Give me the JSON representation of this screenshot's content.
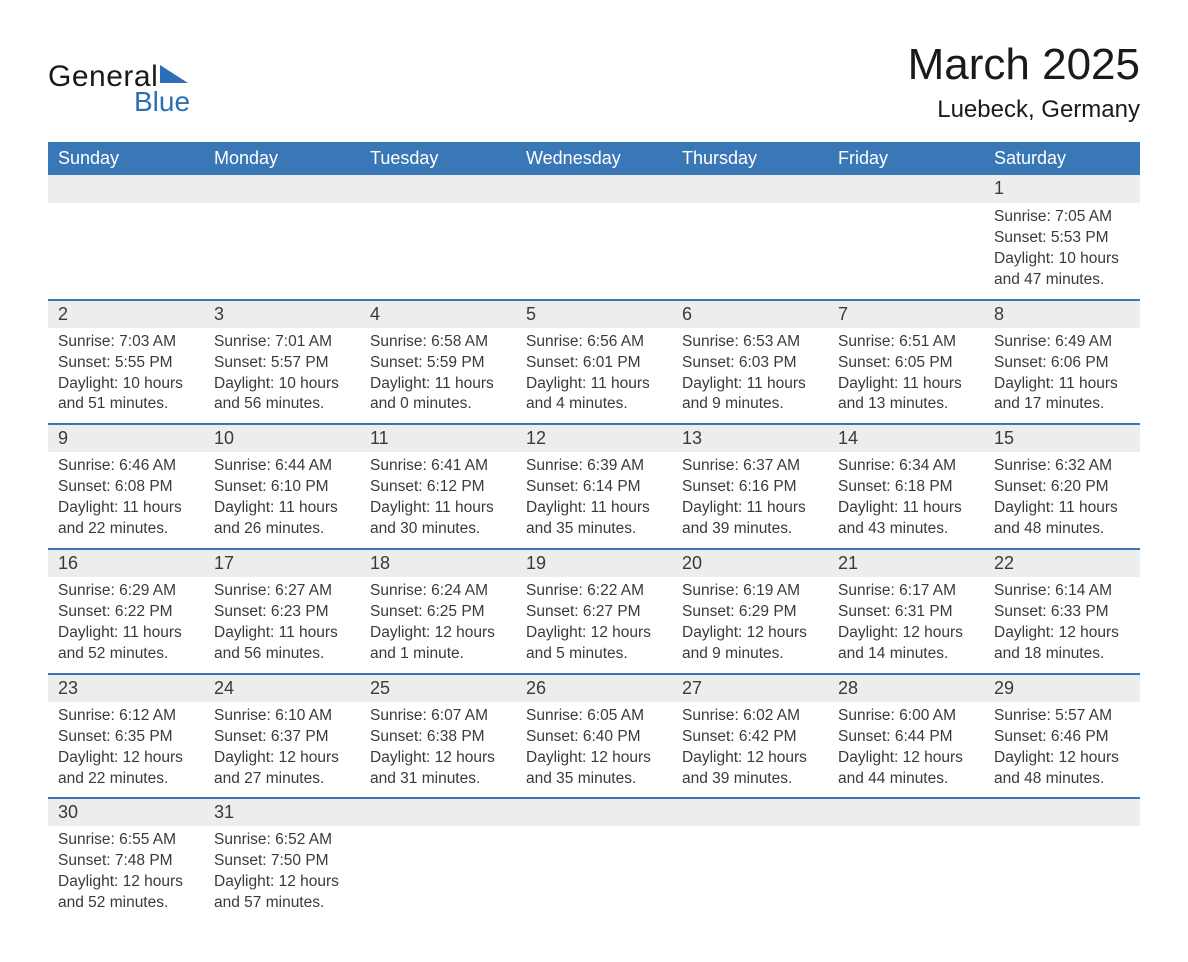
{
  "brand": {
    "general": "General",
    "blue": "Blue"
  },
  "title": "March 2025",
  "location": "Luebeck, Germany",
  "colors": {
    "header_bg": "#3a77b7",
    "header_text": "#ffffff",
    "daynum_bg": "#ededed",
    "text": "#3a3a3a",
    "logo_blue": "#2d6fb5",
    "row_divider": "#3a77b7"
  },
  "fonts": {
    "title_size_pt": 33,
    "location_size_pt": 18,
    "header_size_pt": 14,
    "cell_size_pt": 12
  },
  "weekdays": [
    "Sunday",
    "Monday",
    "Tuesday",
    "Wednesday",
    "Thursday",
    "Friday",
    "Saturday"
  ],
  "weeks": [
    [
      null,
      null,
      null,
      null,
      null,
      null,
      {
        "n": "1",
        "sunrise": "Sunrise: 7:05 AM",
        "sunset": "Sunset: 5:53 PM",
        "daylight": "Daylight: 10 hours and 47 minutes."
      }
    ],
    [
      {
        "n": "2",
        "sunrise": "Sunrise: 7:03 AM",
        "sunset": "Sunset: 5:55 PM",
        "daylight": "Daylight: 10 hours and 51 minutes."
      },
      {
        "n": "3",
        "sunrise": "Sunrise: 7:01 AM",
        "sunset": "Sunset: 5:57 PM",
        "daylight": "Daylight: 10 hours and 56 minutes."
      },
      {
        "n": "4",
        "sunrise": "Sunrise: 6:58 AM",
        "sunset": "Sunset: 5:59 PM",
        "daylight": "Daylight: 11 hours and 0 minutes."
      },
      {
        "n": "5",
        "sunrise": "Sunrise: 6:56 AM",
        "sunset": "Sunset: 6:01 PM",
        "daylight": "Daylight: 11 hours and 4 minutes."
      },
      {
        "n": "6",
        "sunrise": "Sunrise: 6:53 AM",
        "sunset": "Sunset: 6:03 PM",
        "daylight": "Daylight: 11 hours and 9 minutes."
      },
      {
        "n": "7",
        "sunrise": "Sunrise: 6:51 AM",
        "sunset": "Sunset: 6:05 PM",
        "daylight": "Daylight: 11 hours and 13 minutes."
      },
      {
        "n": "8",
        "sunrise": "Sunrise: 6:49 AM",
        "sunset": "Sunset: 6:06 PM",
        "daylight": "Daylight: 11 hours and 17 minutes."
      }
    ],
    [
      {
        "n": "9",
        "sunrise": "Sunrise: 6:46 AM",
        "sunset": "Sunset: 6:08 PM",
        "daylight": "Daylight: 11 hours and 22 minutes."
      },
      {
        "n": "10",
        "sunrise": "Sunrise: 6:44 AM",
        "sunset": "Sunset: 6:10 PM",
        "daylight": "Daylight: 11 hours and 26 minutes."
      },
      {
        "n": "11",
        "sunrise": "Sunrise: 6:41 AM",
        "sunset": "Sunset: 6:12 PM",
        "daylight": "Daylight: 11 hours and 30 minutes."
      },
      {
        "n": "12",
        "sunrise": "Sunrise: 6:39 AM",
        "sunset": "Sunset: 6:14 PM",
        "daylight": "Daylight: 11 hours and 35 minutes."
      },
      {
        "n": "13",
        "sunrise": "Sunrise: 6:37 AM",
        "sunset": "Sunset: 6:16 PM",
        "daylight": "Daylight: 11 hours and 39 minutes."
      },
      {
        "n": "14",
        "sunrise": "Sunrise: 6:34 AM",
        "sunset": "Sunset: 6:18 PM",
        "daylight": "Daylight: 11 hours and 43 minutes."
      },
      {
        "n": "15",
        "sunrise": "Sunrise: 6:32 AM",
        "sunset": "Sunset: 6:20 PM",
        "daylight": "Daylight: 11 hours and 48 minutes."
      }
    ],
    [
      {
        "n": "16",
        "sunrise": "Sunrise: 6:29 AM",
        "sunset": "Sunset: 6:22 PM",
        "daylight": "Daylight: 11 hours and 52 minutes."
      },
      {
        "n": "17",
        "sunrise": "Sunrise: 6:27 AM",
        "sunset": "Sunset: 6:23 PM",
        "daylight": "Daylight: 11 hours and 56 minutes."
      },
      {
        "n": "18",
        "sunrise": "Sunrise: 6:24 AM",
        "sunset": "Sunset: 6:25 PM",
        "daylight": "Daylight: 12 hours and 1 minute."
      },
      {
        "n": "19",
        "sunrise": "Sunrise: 6:22 AM",
        "sunset": "Sunset: 6:27 PM",
        "daylight": "Daylight: 12 hours and 5 minutes."
      },
      {
        "n": "20",
        "sunrise": "Sunrise: 6:19 AM",
        "sunset": "Sunset: 6:29 PM",
        "daylight": "Daylight: 12 hours and 9 minutes."
      },
      {
        "n": "21",
        "sunrise": "Sunrise: 6:17 AM",
        "sunset": "Sunset: 6:31 PM",
        "daylight": "Daylight: 12 hours and 14 minutes."
      },
      {
        "n": "22",
        "sunrise": "Sunrise: 6:14 AM",
        "sunset": "Sunset: 6:33 PM",
        "daylight": "Daylight: 12 hours and 18 minutes."
      }
    ],
    [
      {
        "n": "23",
        "sunrise": "Sunrise: 6:12 AM",
        "sunset": "Sunset: 6:35 PM",
        "daylight": "Daylight: 12 hours and 22 minutes."
      },
      {
        "n": "24",
        "sunrise": "Sunrise: 6:10 AM",
        "sunset": "Sunset: 6:37 PM",
        "daylight": "Daylight: 12 hours and 27 minutes."
      },
      {
        "n": "25",
        "sunrise": "Sunrise: 6:07 AM",
        "sunset": "Sunset: 6:38 PM",
        "daylight": "Daylight: 12 hours and 31 minutes."
      },
      {
        "n": "26",
        "sunrise": "Sunrise: 6:05 AM",
        "sunset": "Sunset: 6:40 PM",
        "daylight": "Daylight: 12 hours and 35 minutes."
      },
      {
        "n": "27",
        "sunrise": "Sunrise: 6:02 AM",
        "sunset": "Sunset: 6:42 PM",
        "daylight": "Daylight: 12 hours and 39 minutes."
      },
      {
        "n": "28",
        "sunrise": "Sunrise: 6:00 AM",
        "sunset": "Sunset: 6:44 PM",
        "daylight": "Daylight: 12 hours and 44 minutes."
      },
      {
        "n": "29",
        "sunrise": "Sunrise: 5:57 AM",
        "sunset": "Sunset: 6:46 PM",
        "daylight": "Daylight: 12 hours and 48 minutes."
      }
    ],
    [
      {
        "n": "30",
        "sunrise": "Sunrise: 6:55 AM",
        "sunset": "Sunset: 7:48 PM",
        "daylight": "Daylight: 12 hours and 52 minutes."
      },
      {
        "n": "31",
        "sunrise": "Sunrise: 6:52 AM",
        "sunset": "Sunset: 7:50 PM",
        "daylight": "Daylight: 12 hours and 57 minutes."
      },
      null,
      null,
      null,
      null,
      null
    ]
  ]
}
